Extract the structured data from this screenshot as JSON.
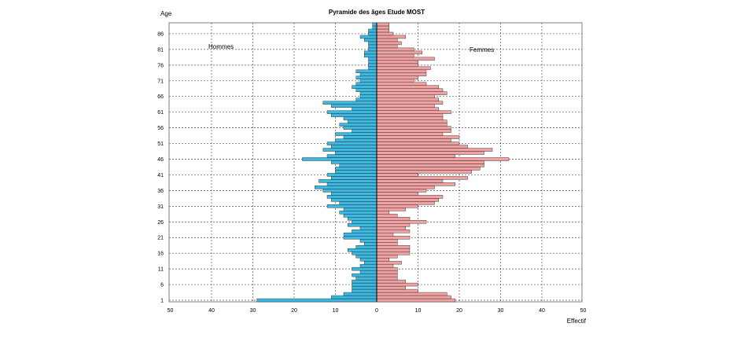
{
  "chart_data": {
    "type": "bar",
    "title": "Pyramide des âges Etude MOST",
    "ylabel": "Age",
    "xlabel": "Effectif",
    "xlim": [
      -50,
      50
    ],
    "x_ticks": [
      "50",
      "40",
      "30",
      "20",
      "10",
      "0",
      "10",
      "20",
      "30",
      "40",
      "50"
    ],
    "y_ticks": [
      "1",
      "6",
      "11",
      "16",
      "21",
      "26",
      "31",
      "36",
      "41",
      "46",
      "51",
      "56",
      "61",
      "66",
      "71",
      "76",
      "81",
      "86"
    ],
    "grid": true,
    "ages_from": 1,
    "series": [
      {
        "name": "Hommes",
        "color": "#3db8e0",
        "values": [
          29,
          11,
          8,
          6,
          6,
          6,
          6,
          5,
          6,
          4,
          6,
          4,
          3,
          4,
          5,
          6,
          7,
          5,
          3,
          4,
          8,
          8,
          6,
          4,
          7,
          6,
          7,
          8,
          9,
          8,
          12,
          9,
          11,
          12,
          11,
          13,
          15,
          12,
          14,
          11,
          12,
          10,
          10,
          9,
          11,
          18,
          12,
          10,
          13,
          11,
          12,
          10,
          8,
          10,
          6,
          8,
          9,
          7,
          8,
          11,
          12,
          6,
          11,
          13,
          5,
          4,
          4,
          5,
          6,
          5,
          4,
          5,
          4,
          5,
          2,
          2,
          2,
          2,
          3,
          3,
          2,
          2,
          2,
          3,
          4,
          2,
          2,
          1,
          1
        ]
      },
      {
        "name": "Femmes",
        "color": "#f0a2a2",
        "values": [
          19,
          18,
          17,
          10,
          7,
          10,
          7,
          5,
          5,
          5,
          5,
          4,
          6,
          3,
          5,
          8,
          8,
          8,
          5,
          5,
          8,
          4,
          8,
          7,
          8,
          12,
          8,
          5,
          3,
          7,
          10,
          14,
          15,
          16,
          10,
          12,
          14,
          19,
          16,
          22,
          10,
          23,
          25,
          26,
          26,
          32,
          19,
          26,
          28,
          22,
          20,
          18,
          20,
          16,
          18,
          18,
          17,
          17,
          16,
          16,
          18,
          15,
          14,
          16,
          15,
          14,
          17,
          16,
          15,
          12,
          9,
          10,
          12,
          12,
          13,
          10,
          10,
          14,
          9,
          11,
          9,
          5,
          6,
          5,
          7,
          4,
          3,
          3,
          3
        ]
      }
    ]
  }
}
